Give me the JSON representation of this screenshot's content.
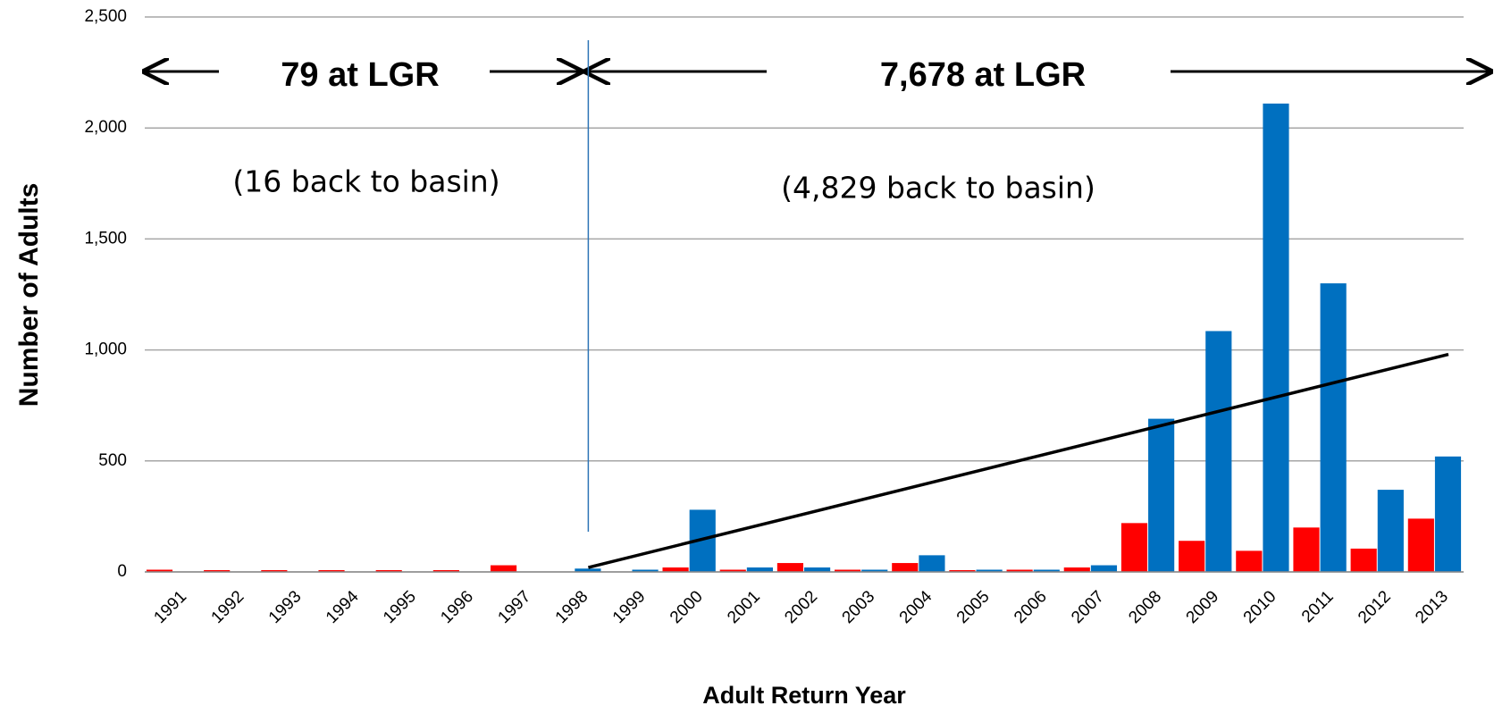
{
  "chart_data": {
    "type": "bar",
    "categories": [
      "1991",
      "1992",
      "1993",
      "1994",
      "1995",
      "1996",
      "1997",
      "1998",
      "1999",
      "2000",
      "2001",
      "2002",
      "2003",
      "2004",
      "2005",
      "2006",
      "2007",
      "2008",
      "2009",
      "2010",
      "2011",
      "2012",
      "2013"
    ],
    "series": [
      {
        "color": "#ff0000",
        "values": [
          10,
          8,
          8,
          8,
          8,
          8,
          30,
          0,
          2,
          20,
          10,
          40,
          10,
          40,
          8,
          10,
          20,
          220,
          140,
          95,
          200,
          105,
          240
        ]
      },
      {
        "color": "#0070c0",
        "values": [
          0,
          0,
          0,
          0,
          0,
          0,
          0,
          15,
          10,
          280,
          20,
          20,
          10,
          75,
          10,
          10,
          30,
          690,
          1085,
          2110,
          1300,
          370,
          520
        ]
      }
    ],
    "ylim": [
      0,
      2500
    ],
    "yticks": [
      0,
      {
        "value": 500,
        "label": "500"
      },
      {
        "value": 1000,
        "label": "1,000"
      },
      {
        "value": 1500,
        "label": "1,500"
      },
      {
        "value": 2000,
        "label": "2,000"
      },
      {
        "value": 2500,
        "label": "2,500"
      }
    ],
    "ylabel": "Number of Adults",
    "xlabel": "Adult Return Year",
    "grid": true,
    "trendline": {
      "categories": [
        "1998",
        "2013"
      ],
      "values": [
        20,
        980
      ],
      "color": "#000000"
    },
    "divider_at": "1998",
    "annotations": [
      "79 at LGR",
      "7,678 at LGR",
      "(16 back to basin)",
      "(4,829 back to basin)"
    ]
  }
}
